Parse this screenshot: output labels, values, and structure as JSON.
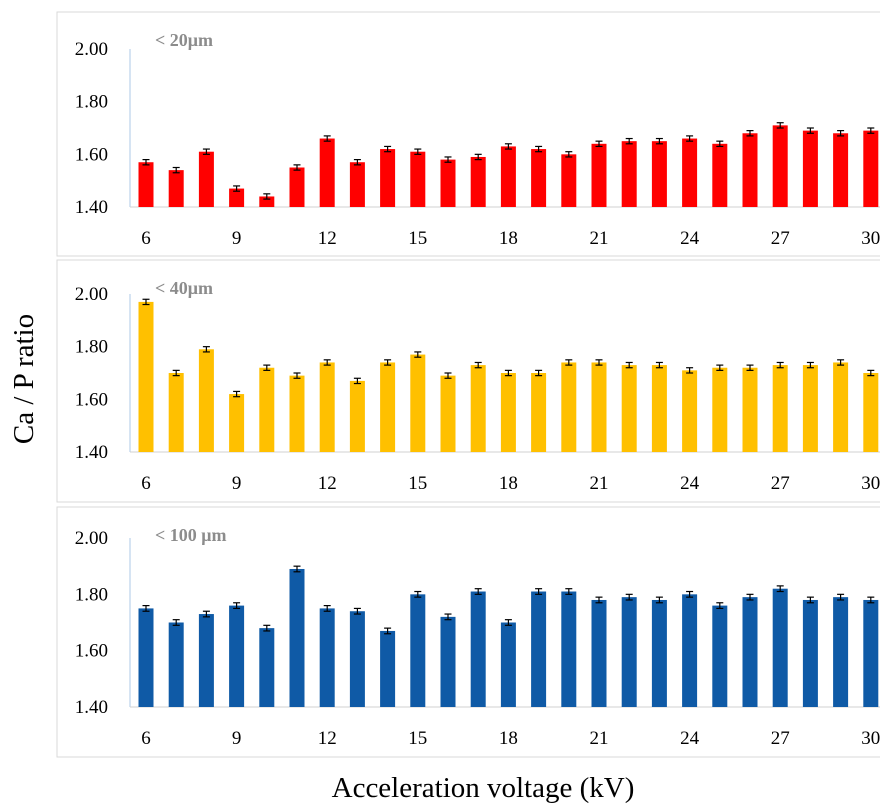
{
  "figure": {
    "ylabel": "Ca / P ratio",
    "xlabel": "Acceleration voltage (kV)"
  },
  "chart_data": [
    {
      "type": "bar",
      "tag": "< 20μm",
      "color": "#ff0000",
      "x": [
        6,
        7,
        8,
        9,
        10,
        11,
        12,
        13,
        14,
        15,
        16,
        17,
        18,
        19,
        20,
        21,
        22,
        23,
        24,
        25,
        26,
        27,
        28,
        29,
        30
      ],
      "values": [
        1.57,
        1.54,
        1.61,
        1.47,
        1.44,
        1.55,
        1.66,
        1.57,
        1.62,
        1.61,
        1.58,
        1.59,
        1.63,
        1.62,
        1.6,
        1.64,
        1.65,
        1.65,
        1.66,
        1.64,
        1.68,
        1.71,
        1.69,
        1.68,
        1.69
      ],
      "x_tick_labels": [
        "6",
        "9",
        "12",
        "15",
        "18",
        "21",
        "24",
        "27",
        "30"
      ],
      "y_tick_labels": [
        "1.40",
        "1.60",
        "1.80",
        "2.00"
      ],
      "ylim": [
        1.4,
        2.0
      ]
    },
    {
      "type": "bar",
      "tag": "< 40μm",
      "color": "#ffc000",
      "x": [
        6,
        7,
        8,
        9,
        10,
        11,
        12,
        13,
        14,
        15,
        16,
        17,
        18,
        19,
        20,
        21,
        22,
        23,
        24,
        25,
        26,
        27,
        28,
        29,
        30
      ],
      "values": [
        1.97,
        1.7,
        1.79,
        1.62,
        1.72,
        1.69,
        1.74,
        1.67,
        1.74,
        1.77,
        1.69,
        1.73,
        1.7,
        1.7,
        1.74,
        1.74,
        1.73,
        1.73,
        1.71,
        1.72,
        1.72,
        1.73,
        1.73,
        1.74,
        1.7
      ],
      "x_tick_labels": [
        "6",
        "9",
        "12",
        "15",
        "18",
        "21",
        "24",
        "27",
        "30"
      ],
      "y_tick_labels": [
        "1.40",
        "1.60",
        "1.80",
        "2.00"
      ],
      "ylim": [
        1.4,
        2.0
      ]
    },
    {
      "type": "bar",
      "tag": "< 100 μm",
      "color": "#0f5aa6",
      "x": [
        6,
        7,
        8,
        9,
        10,
        11,
        12,
        13,
        14,
        15,
        16,
        17,
        18,
        19,
        20,
        21,
        22,
        23,
        24,
        25,
        26,
        27,
        28,
        29,
        30
      ],
      "values": [
        1.75,
        1.7,
        1.73,
        1.76,
        1.68,
        1.89,
        1.75,
        1.74,
        1.67,
        1.8,
        1.72,
        1.81,
        1.7,
        1.81,
        1.81,
        1.78,
        1.79,
        1.78,
        1.8,
        1.76,
        1.79,
        1.82,
        1.78,
        1.79,
        1.78
      ],
      "x_tick_labels": [
        "6",
        "9",
        "12",
        "15",
        "18",
        "21",
        "24",
        "27",
        "30"
      ],
      "y_tick_labels": [
        "1.40",
        "1.60",
        "1.80",
        "2.00"
      ],
      "ylim": [
        1.4,
        2.0
      ]
    }
  ]
}
